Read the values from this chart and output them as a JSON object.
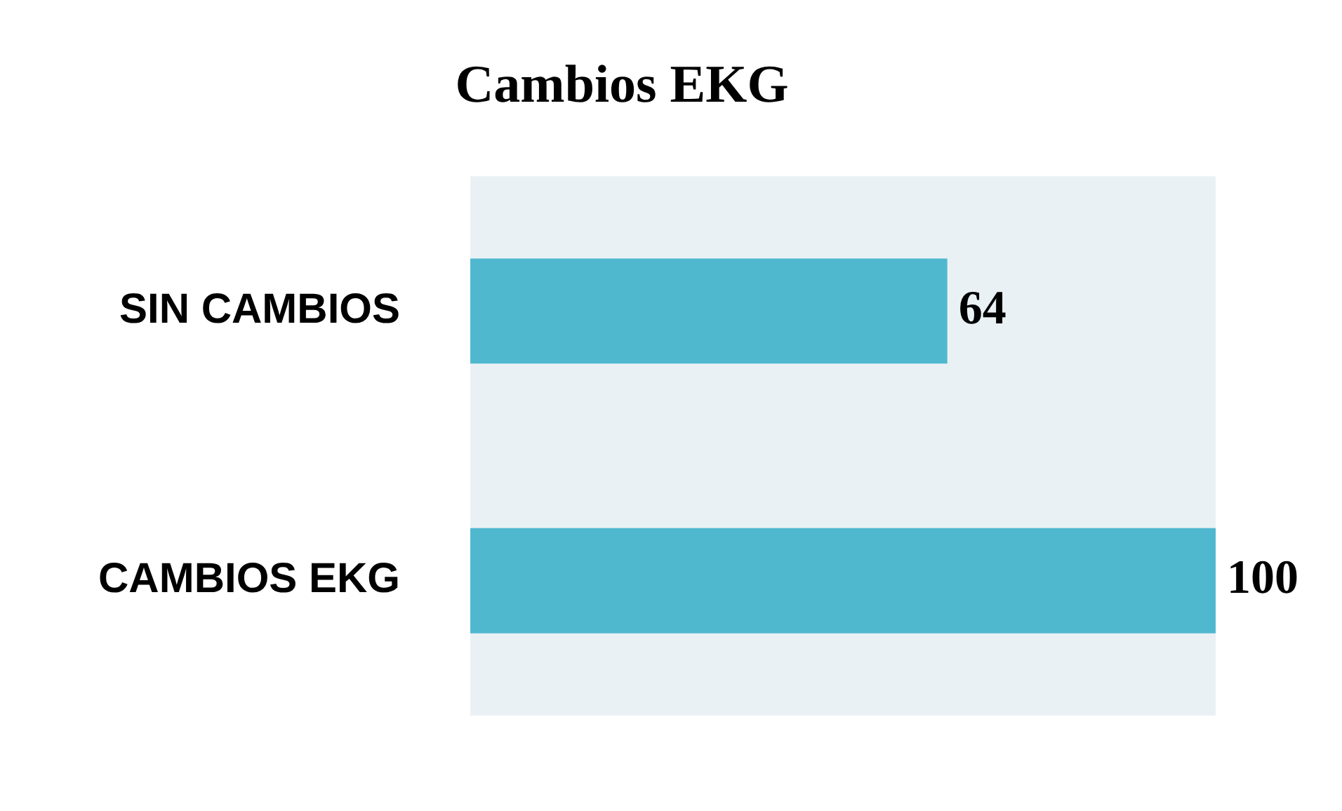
{
  "chart_data": {
    "type": "bar",
    "orientation": "horizontal",
    "title": "Cambios EKG",
    "categories": [
      "SIN CAMBIOS",
      "CAMBIOS EKG"
    ],
    "values": [
      64,
      100
    ],
    "color": "#4fb8cf",
    "data_labels": true,
    "grid": false,
    "legend": false
  }
}
